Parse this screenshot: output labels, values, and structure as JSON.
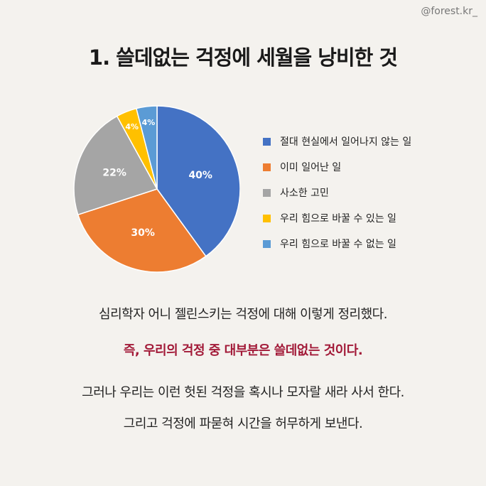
{
  "handle": "@forest.kr_",
  "title": "1. 쓸데없는 걱정에 세월을 낭비한 것",
  "chart_data": {
    "type": "pie",
    "slices": [
      {
        "label": "절대 현실에서 일어나지 않는 일",
        "value": 40,
        "display": "40%",
        "color": "#4472c4"
      },
      {
        "label": "이미 일어난 일",
        "value": 30,
        "display": "30%",
        "color": "#ed7d31"
      },
      {
        "label": "사소한 고민",
        "value": 22,
        "display": "22%",
        "color": "#a5a5a5"
      },
      {
        "label": "우리 힘으로 바꿀 수 있는 일",
        "value": 4,
        "display": "4%",
        "color": "#ffc000"
      },
      {
        "label": "우리 힘으로 바꿀 수 없는 일",
        "value": 4,
        "display": "4%",
        "color": "#5b9bd5"
      }
    ],
    "legend_position": "right"
  },
  "body": {
    "line1": "심리학자 어니 젤린스키는 걱정에 대해 이렇게 정리했다.",
    "line2": "즉, 우리의 걱정 중 대부분은 쓸데없는 것이다.",
    "line3": "그러나 우리는 이런 헛된 걱정을 혹시나 모자랄 새라 사서 한다.",
    "line4": "그리고 걱정에 파묻혀 시간을 허무하게 보낸다."
  },
  "colors": {
    "highlight": "#a21a38",
    "background": "#f4f2ee"
  }
}
